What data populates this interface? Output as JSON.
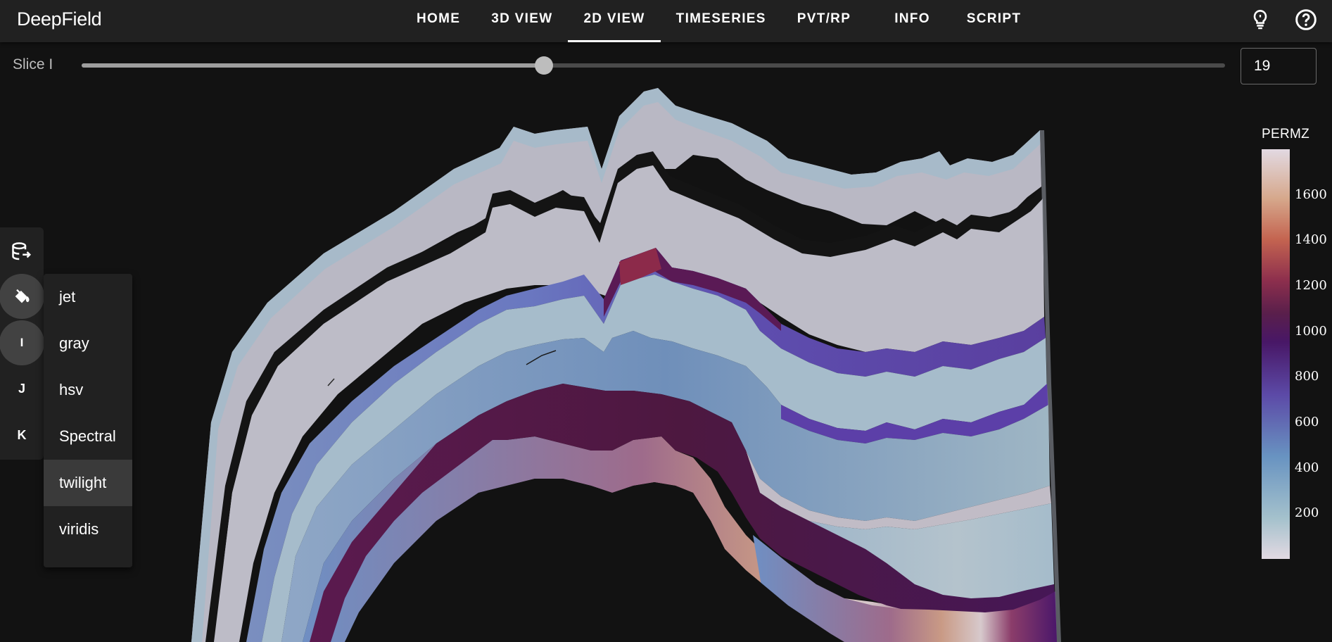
{
  "app": {
    "title": "DeepField"
  },
  "nav": {
    "tabs": [
      "HOME",
      "3D VIEW",
      "2D VIEW",
      "TIMESERIES",
      "PVT/RP",
      "INFO",
      "SCRIPT"
    ],
    "active_index": 2
  },
  "header_icons": [
    "lightbulb-icon",
    "help-circle-icon"
  ],
  "slice": {
    "label": "Slice I",
    "value": "19",
    "min": 0,
    "max": 47
  },
  "speed_dial": {
    "items": [
      "database-export-icon",
      "paint-bucket-icon",
      "I",
      "J",
      "K"
    ],
    "active_index": 2
  },
  "colormap_menu": {
    "options": [
      "jet",
      "gray",
      "hsv",
      "Spectral",
      "twilight",
      "viridis"
    ],
    "selected": "twilight"
  },
  "colorbar": {
    "title": "PERMZ",
    "ticks": [
      "1600",
      "1400",
      "1200",
      "1000",
      "800",
      "600",
      "400",
      "200"
    ],
    "tick_values": [
      1600,
      1400,
      1200,
      1000,
      800,
      600,
      400,
      200
    ],
    "min": 0,
    "max": 1800,
    "colormap": "twilight"
  },
  "colors": {
    "background": "#121212",
    "appbar": "#212121",
    "accent": "#ffffff"
  }
}
